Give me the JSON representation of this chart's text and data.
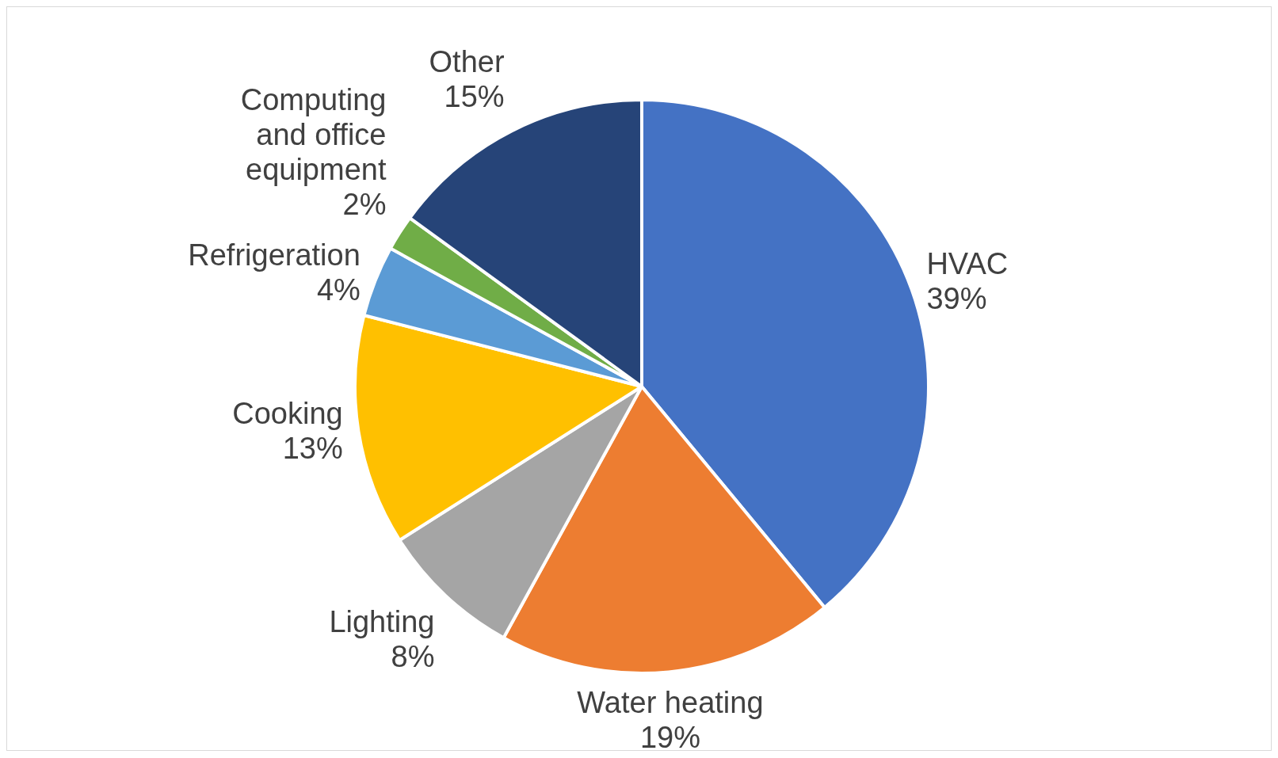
{
  "chart_data": {
    "type": "pie",
    "categories": [
      "HVAC",
      "Water heating",
      "Lighting",
      "Cooking",
      "Refrigeration",
      "Computing and office equipment",
      "Other"
    ],
    "values": [
      39,
      19,
      8,
      13,
      4,
      2,
      15
    ],
    "colors": [
      "#4472c4",
      "#ed7d31",
      "#a5a5a5",
      "#ffc000",
      "#5b9bd5",
      "#70ad47",
      "#264478"
    ],
    "value_labels": [
      "39%",
      "19%",
      "8%",
      "13%",
      "4%",
      "2%",
      "15%"
    ],
    "legend": false
  }
}
